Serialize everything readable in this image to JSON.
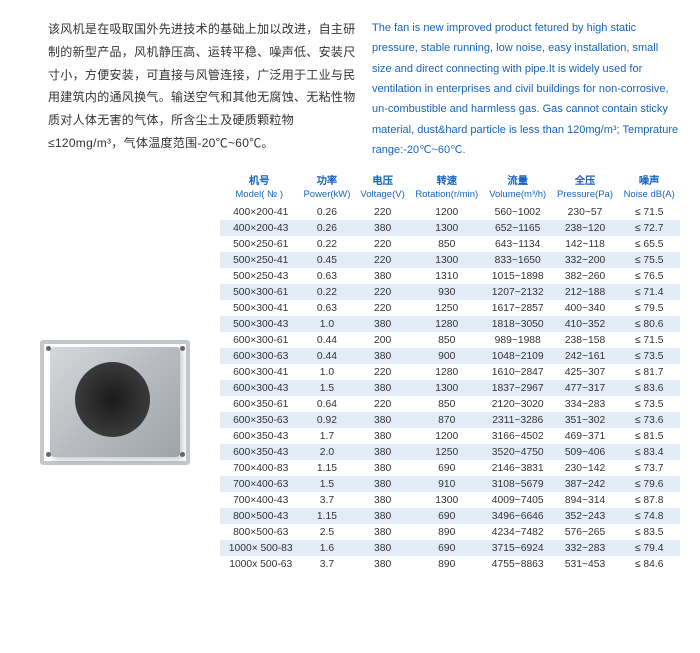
{
  "intro": {
    "cn": "该风机是在吸取国外先进技术的基础上加以改进，自主研制的新型产品，风机静压高、运转平稳、噪声低、安装尺寸小，方便安装，可直接与风管连接，广泛用于工业与民用建筑内的通风换气。输送空气和其他无腐蚀、无粘性物质对人体无害的气体，所含尘土及硬质颗粒物≤120mg/m³，气体温度范围-20℃~60℃。",
    "en": "The fan is new improved product fetured by high static pressure, stable running, low noise, easy installation, small size and direct connecting with pipe.It is widely used for ventilation in enterprises and civil buildings for non-corrosive, un-combustible and harmless gas. Gas cannot contain sticky material, dust&hard particle is less than 120mg/m³; Temprature range:-20℃~60℃."
  },
  "headers": [
    {
      "cn": "机号",
      "en": "Model( № )"
    },
    {
      "cn": "功率",
      "en": "Power(kW)"
    },
    {
      "cn": "电压",
      "en": "Voltage(V)"
    },
    {
      "cn": "转速",
      "en": "Rotation(r/min)"
    },
    {
      "cn": "流量",
      "en": "Volume(m³/h)"
    },
    {
      "cn": "全压",
      "en": "Pressure(Pa)"
    },
    {
      "cn": "噪声",
      "en": "Noise dB(A)"
    }
  ],
  "rows": [
    [
      "400×200-41",
      "0.26",
      "220",
      "1200",
      "560~1002",
      "230~57",
      "≤ 71.5"
    ],
    [
      "400×200-43",
      "0.26",
      "380",
      "1300",
      "652~1165",
      "238~120",
      "≤ 72.7"
    ],
    [
      "500×250-61",
      "0.22",
      "220",
      "850",
      "643~1134",
      "142~118",
      "≤ 65.5"
    ],
    [
      "500×250-41",
      "0.45",
      "220",
      "1300",
      "833~1650",
      "332~200",
      "≤ 75.5"
    ],
    [
      "500×250-43",
      "0.63",
      "380",
      "1310",
      "1015~1898",
      "382~260",
      "≤ 76.5"
    ],
    [
      "500×300-61",
      "0.22",
      "220",
      "930",
      "1207~2132",
      "212~188",
      "≤ 71.4"
    ],
    [
      "500×300-41",
      "0.63",
      "220",
      "1250",
      "1617~2857",
      "400~340",
      "≤ 79.5"
    ],
    [
      "500×300-43",
      "1.0",
      "380",
      "1280",
      "1818~3050",
      "410~352",
      "≤ 80.6"
    ],
    [
      "600×300-61",
      "0.44",
      "200",
      "850",
      "989~1988",
      "238~158",
      "≤ 71.5"
    ],
    [
      "600×300-63",
      "0.44",
      "380",
      "900",
      "1048~2109",
      "242~161",
      "≤ 73.5"
    ],
    [
      "600×300-41",
      "1.0",
      "220",
      "1280",
      "1610~2847",
      "425~307",
      "≤ 81.7"
    ],
    [
      "600×300-43",
      "1.5",
      "380",
      "1300",
      "1837~2967",
      "477~317",
      "≤ 83.6"
    ],
    [
      "600×350-61",
      "0.64",
      "220",
      "850",
      "2120~3020",
      "334~283",
      "≤ 73.5"
    ],
    [
      "600×350-63",
      "0.92",
      "380",
      "870",
      "2311~3286",
      "351~302",
      "≤ 73.6"
    ],
    [
      "600×350-43",
      "1.7",
      "380",
      "1200",
      "3166~4502",
      "469~371",
      "≤ 81.5"
    ],
    [
      "600×350-43",
      "2.0",
      "380",
      "1250",
      "3520~4750",
      "509~406",
      "≤ 83.4"
    ],
    [
      "700×400-83",
      "1.15",
      "380",
      "690",
      "2146~3831",
      "230~142",
      "≤ 73.7"
    ],
    [
      "700×400-63",
      "1.5",
      "380",
      "910",
      "3108~5679",
      "387~242",
      "≤ 79.6"
    ],
    [
      "700×400-43",
      "3.7",
      "380",
      "1300",
      "4009~7405",
      "894~314",
      "≤ 87.8"
    ],
    [
      "800×500-43",
      "1.15",
      "380",
      "690",
      "3496~6646",
      "352~243",
      "≤ 74.8"
    ],
    [
      "800×500-63",
      "2.5",
      "380",
      "890",
      "4234~7482",
      "576~265",
      "≤ 83.5"
    ],
    [
      "1000× 500-83",
      "1.6",
      "380",
      "690",
      "3715~6924",
      "332~283",
      "≤ 79.4"
    ],
    [
      "1000x 500-63",
      "3.7",
      "380",
      "890",
      "4755~8863",
      "531~453",
      "≤ 84.6"
    ]
  ],
  "colors": {
    "blue": "#1565c0",
    "stripe": "#e3ecf5"
  }
}
